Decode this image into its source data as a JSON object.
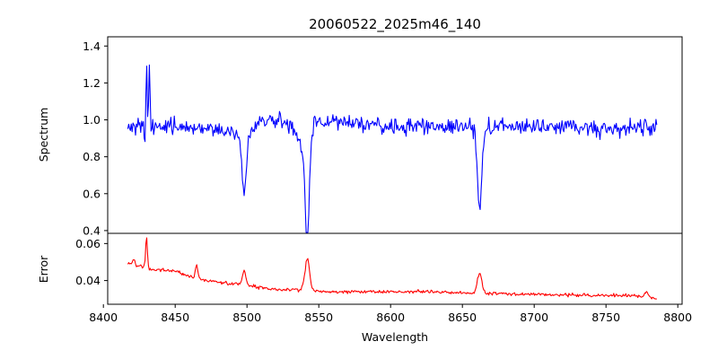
{
  "chart_data": {
    "type": "line",
    "title": "20060522_2025m46_140",
    "xlabel": "Wavelength",
    "xlim": [
      8403,
      8803
    ],
    "x_ticks": [
      8400,
      8450,
      8500,
      8550,
      8600,
      8650,
      8700,
      8750,
      8800
    ],
    "x_range": [
      8417,
      8786
    ],
    "colors": {
      "spectrum": "#0000ff",
      "error": "#ff0000",
      "axes": "#000000"
    },
    "panels": [
      {
        "name": "spectrum",
        "ylabel": "Spectrum",
        "ylim": [
          0.385,
          1.45
        ],
        "y_ticks": [
          0.4,
          0.6,
          0.8,
          1.0,
          1.2,
          1.4
        ],
        "y_tick_labels": [
          "0.4",
          "0.6",
          "0.8",
          "1.0",
          "1.2",
          "1.4"
        ],
        "color": "#0000ff",
        "noise_amplitude": 0.045,
        "baseline": [
          [
            8417,
            0.97
          ],
          [
            8425,
            0.98
          ],
          [
            8440,
            0.96
          ],
          [
            8460,
            0.96
          ],
          [
            8480,
            0.95
          ],
          [
            8490,
            0.93
          ],
          [
            8500,
            0.93
          ],
          [
            8510,
            1.0
          ],
          [
            8525,
            0.99
          ],
          [
            8535,
            0.96
          ],
          [
            8545,
            0.97
          ],
          [
            8560,
            0.99
          ],
          [
            8600,
            0.96
          ],
          [
            8640,
            0.97
          ],
          [
            8660,
            0.95
          ],
          [
            8680,
            0.97
          ],
          [
            8720,
            0.96
          ],
          [
            8760,
            0.95
          ],
          [
            8786,
            0.97
          ]
        ],
        "features": [
          {
            "center": 8498,
            "depth": -0.33,
            "width": 1.6
          },
          {
            "center": 8542,
            "depth": -0.54,
            "width": 1.4
          },
          {
            "center": 8539,
            "depth": -0.12,
            "width": 3.5
          },
          {
            "center": 8662,
            "depth": -0.42,
            "width": 1.5
          },
          {
            "center": 8430,
            "depth": 0.38,
            "width": 0.45
          },
          {
            "center": 8432,
            "depth": 0.33,
            "width": 0.45
          },
          {
            "center": 8429,
            "depth": -0.12,
            "width": 0.5
          }
        ]
      },
      {
        "name": "error",
        "ylabel": "Error",
        "ylim": [
          0.0272,
          0.0655
        ],
        "y_ticks": [
          0.04,
          0.06
        ],
        "y_tick_labels": [
          "0.04",
          "0.06"
        ],
        "color": "#ff0000",
        "noise_amplitude": 0.0009,
        "baseline": [
          [
            8417,
            0.049
          ],
          [
            8425,
            0.048
          ],
          [
            8435,
            0.046
          ],
          [
            8450,
            0.045
          ],
          [
            8465,
            0.041
          ],
          [
            8480,
            0.039
          ],
          [
            8495,
            0.038
          ],
          [
            8510,
            0.036
          ],
          [
            8525,
            0.035
          ],
          [
            8540,
            0.035
          ],
          [
            8555,
            0.034
          ],
          [
            8580,
            0.034
          ],
          [
            8620,
            0.034
          ],
          [
            8660,
            0.033
          ],
          [
            8700,
            0.0325
          ],
          [
            8740,
            0.032
          ],
          [
            8770,
            0.032
          ],
          [
            8786,
            0.03
          ]
        ],
        "features": [
          {
            "center": 8430,
            "depth": 0.017,
            "width": 0.6
          },
          {
            "center": 8421,
            "depth": 0.003,
            "width": 0.8
          },
          {
            "center": 8465,
            "depth": 0.007,
            "width": 0.9
          },
          {
            "center": 8498,
            "depth": 0.008,
            "width": 1.2
          },
          {
            "center": 8542,
            "depth": 0.017,
            "width": 1.6
          },
          {
            "center": 8662,
            "depth": 0.011,
            "width": 1.6
          },
          {
            "center": 8778,
            "depth": 0.003,
            "width": 1.0
          }
        ]
      }
    ]
  }
}
